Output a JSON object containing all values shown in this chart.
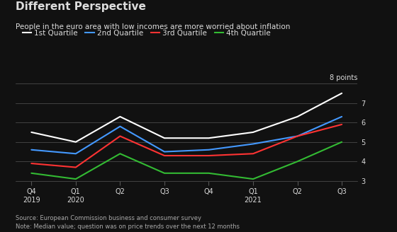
{
  "title": "Different Perspective",
  "subtitle": "People in the euro area with low incomes are more worried about inflation",
  "source_note": "Source: European Commission business and consumer survey\nNote: Median value; question was on price trends over the next 12 months",
  "x_labels": [
    "Q4\n2019",
    "Q1\n2020",
    "Q2",
    "Q3",
    "Q4",
    "Q1\n2021",
    "Q2",
    "Q3"
  ],
  "y_label": "8 points",
  "ylim": [
    3,
    8
  ],
  "yticks": [
    3,
    4,
    5,
    6,
    7
  ],
  "background_color": "#111111",
  "text_color": "#dddddd",
  "grid_color": "#555555",
  "series": [
    {
      "name": "1st Quartile",
      "color": "#ffffff",
      "values": [
        5.5,
        5.0,
        6.3,
        5.2,
        5.2,
        5.5,
        6.3,
        7.5
      ]
    },
    {
      "name": "2nd Quartile",
      "color": "#4499ff",
      "values": [
        4.6,
        4.4,
        5.8,
        4.5,
        4.6,
        4.9,
        5.3,
        6.3
      ]
    },
    {
      "name": "3rd Quartile",
      "color": "#ff3333",
      "values": [
        3.9,
        3.7,
        5.3,
        4.3,
        4.3,
        4.4,
        5.3,
        5.9
      ]
    },
    {
      "name": "4th Quartile",
      "color": "#33bb33",
      "values": [
        3.4,
        3.1,
        4.4,
        3.4,
        3.4,
        3.1,
        4.0,
        5.0
      ]
    }
  ]
}
